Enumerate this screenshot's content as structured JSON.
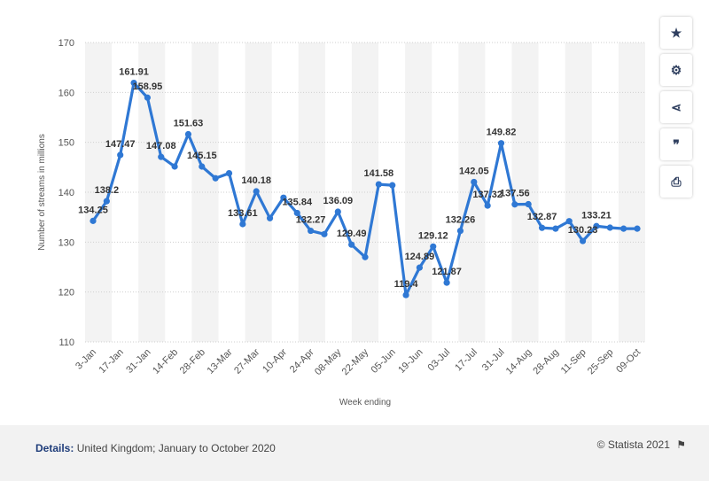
{
  "chart_data": {
    "type": "line",
    "xlabel": "Week ending",
    "ylabel": "Number of streams in millions",
    "ylim": [
      110,
      170
    ],
    "yticks": [
      110,
      120,
      130,
      140,
      150,
      160,
      170
    ],
    "grid": true,
    "color": "#2f78d4",
    "x_tick_labels": [
      "3-Jan",
      "17-Jan",
      "31-Jan",
      "14-Feb",
      "28-Feb",
      "13-Mar",
      "27-Mar",
      "10-Apr",
      "24-Apr",
      "08-May",
      "22-May",
      "05-Jun",
      "19-Jun",
      "03-Jul",
      "17-Jul",
      "31-Jul",
      "14-Aug",
      "28-Aug",
      "11-Sep",
      "25-Sep",
      "09-Oct"
    ],
    "values": [
      134.25,
      138.2,
      147.47,
      161.91,
      158.95,
      147.08,
      145.15,
      151.63,
      145.15,
      142.8,
      143.8,
      133.61,
      140.18,
      134.8,
      138.9,
      135.84,
      132.27,
      131.6,
      136.09,
      129.49,
      127.0,
      141.58,
      141.4,
      119.4,
      124.89,
      129.12,
      121.87,
      132.26,
      142.05,
      137.32,
      149.82,
      137.56,
      137.6,
      132.87,
      132.7,
      134.2,
      130.23,
      133.21,
      132.9,
      132.7,
      132.7
    ],
    "data_labels": [
      {
        "index": 0,
        "text": "134.25"
      },
      {
        "index": 1,
        "text": "138.2"
      },
      {
        "index": 2,
        "text": "147.47"
      },
      {
        "index": 3,
        "text": "161.91"
      },
      {
        "index": 4,
        "text": "158.95"
      },
      {
        "index": 5,
        "text": "147.08"
      },
      {
        "index": 7,
        "text": "151.63"
      },
      {
        "index": 8,
        "text": "145.15"
      },
      {
        "index": 11,
        "text": "133.61"
      },
      {
        "index": 12,
        "text": "140.18"
      },
      {
        "index": 15,
        "text": "135.84"
      },
      {
        "index": 16,
        "text": "132.27"
      },
      {
        "index": 18,
        "text": "136.09"
      },
      {
        "index": 19,
        "text": "129.49"
      },
      {
        "index": 21,
        "text": "141.58"
      },
      {
        "index": 23,
        "text": "119.4"
      },
      {
        "index": 24,
        "text": "124.89"
      },
      {
        "index": 25,
        "text": "129.12"
      },
      {
        "index": 26,
        "text": "121.87"
      },
      {
        "index": 27,
        "text": "132.26"
      },
      {
        "index": 28,
        "text": "142.05"
      },
      {
        "index": 29,
        "text": "137.32"
      },
      {
        "index": 30,
        "text": "149.82"
      },
      {
        "index": 31,
        "text": "137.56"
      },
      {
        "index": 33,
        "text": "132.87"
      },
      {
        "index": 36,
        "text": "130.23"
      },
      {
        "index": 37,
        "text": "133.21"
      }
    ]
  },
  "footer": {
    "details_label": "Details:",
    "details_text": "United Kingdom; January to October 2020",
    "copyright": "© Statista 2021"
  },
  "toolbar": [
    {
      "name": "star-icon",
      "glyph": "★"
    },
    {
      "name": "gear-icon",
      "glyph": "⚙"
    },
    {
      "name": "share-icon",
      "glyph": "⋖"
    },
    {
      "name": "quote-icon",
      "glyph": "❞"
    },
    {
      "name": "print-icon",
      "glyph": "⎙"
    }
  ]
}
